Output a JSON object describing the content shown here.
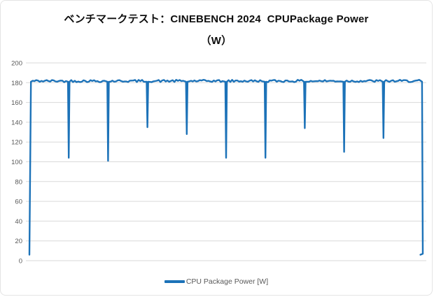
{
  "window": {
    "background": "#ffffff",
    "border_color": "#e4e4e4"
  },
  "chart_data": {
    "type": "line",
    "title": "ベンチマークテスト：CINEBENCH 2024  CPUPackage Power",
    "title_line2": "（W）",
    "xlabel": "",
    "ylabel": "",
    "ylim": [
      0,
      200
    ],
    "yticks": [
      0,
      20,
      40,
      60,
      80,
      100,
      120,
      140,
      160,
      180,
      200
    ],
    "x_axis_labels_visible": false,
    "grid": true,
    "legend_position": "bottom",
    "baseline_watts": 181,
    "dip_minima_watts": [
      104,
      101,
      135,
      128,
      104,
      104,
      134,
      110,
      124
    ],
    "start_watts": 6,
    "end_watts": 7,
    "series": [
      {
        "name": "CPU Package Power [W]",
        "color": "#1c72b8",
        "points": [
          [
            0.0,
            6
          ],
          [
            0.004,
            181
          ],
          [
            0.098,
            181
          ],
          [
            0.1,
            104
          ],
          [
            0.102,
            181
          ],
          [
            0.198,
            181
          ],
          [
            0.2,
            101
          ],
          [
            0.202,
            181
          ],
          [
            0.298,
            181
          ],
          [
            0.3,
            135
          ],
          [
            0.302,
            181
          ],
          [
            0.398,
            181
          ],
          [
            0.4,
            128
          ],
          [
            0.402,
            181
          ],
          [
            0.498,
            181
          ],
          [
            0.5,
            104
          ],
          [
            0.502,
            181
          ],
          [
            0.598,
            181
          ],
          [
            0.6,
            104
          ],
          [
            0.602,
            181
          ],
          [
            0.698,
            181
          ],
          [
            0.7,
            134
          ],
          [
            0.702,
            181
          ],
          [
            0.798,
            181
          ],
          [
            0.8,
            110
          ],
          [
            0.802,
            181
          ],
          [
            0.898,
            181
          ],
          [
            0.9,
            124
          ],
          [
            0.902,
            181
          ],
          [
            0.998,
            181
          ],
          [
            1.0,
            7
          ],
          [
            0.994,
            6
          ]
        ]
      }
    ],
    "colors": {
      "gridline": "#d9d9d9",
      "tick_label": "#595959",
      "legend_text": "#595959",
      "title": "#0d0d0d"
    }
  }
}
